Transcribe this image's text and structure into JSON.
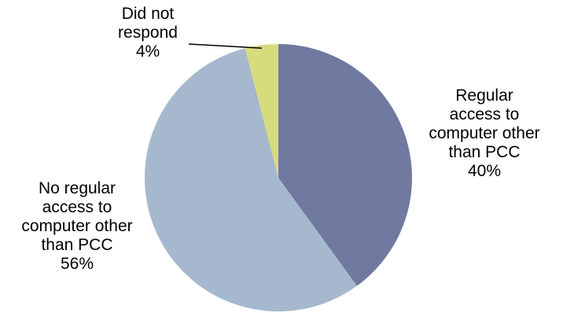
{
  "chart_data": {
    "type": "pie",
    "start_angle_deg": 0,
    "direction": "clockwise",
    "slices": [
      {
        "label_lines": [
          "Regular",
          "access to",
          "computer other",
          "than PCC"
        ],
        "pct_label": "40%",
        "value": 40,
        "color": "#7079a0"
      },
      {
        "label_lines": [
          "No regular",
          "access to",
          "computer other",
          "than PCC"
        ],
        "pct_label": "56%",
        "value": 56,
        "color": "#a5b8cd"
      },
      {
        "label_lines": [
          "Did not",
          "respond"
        ],
        "pct_label": "4%",
        "value": 4,
        "color": "#d6dc7c"
      }
    ]
  }
}
